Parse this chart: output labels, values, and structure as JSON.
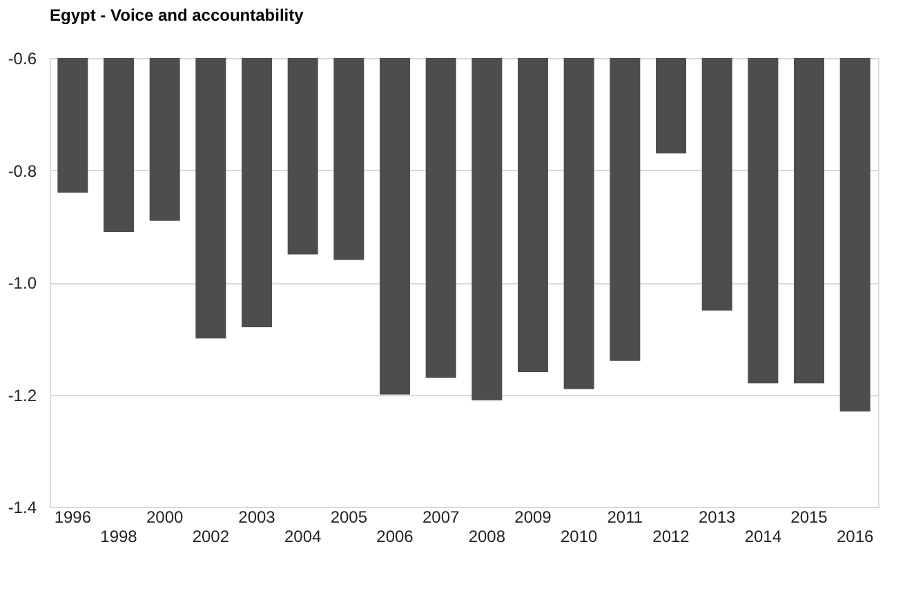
{
  "chart_data": {
    "type": "bar",
    "title": "Egypt - Voice and accountability",
    "categories": [
      "1996",
      "1998",
      "2000",
      "2002",
      "2003",
      "2004",
      "2005",
      "2006",
      "2007",
      "2008",
      "2009",
      "2010",
      "2011",
      "2012",
      "2013",
      "2014",
      "2015",
      "2016"
    ],
    "values": [
      -0.84,
      -0.91,
      -0.89,
      -1.1,
      -1.08,
      -0.95,
      -0.96,
      -1.2,
      -1.17,
      -1.21,
      -1.16,
      -1.19,
      -1.14,
      -0.77,
      -1.05,
      -1.18,
      -1.18,
      -1.23
    ],
    "color": "#4d4d4d",
    "ylim": [
      -1.4,
      -0.6
    ],
    "yticks": [
      {
        "value": -1.4,
        "label": "-1.4"
      },
      {
        "value": -1.2,
        "label": "-1.2"
      },
      {
        "value": -1.0,
        "label": "-1.0"
      },
      {
        "value": -0.8,
        "label": "-0.8"
      },
      {
        "value": -0.6,
        "label": "-0.6"
      }
    ],
    "grid": "y"
  }
}
